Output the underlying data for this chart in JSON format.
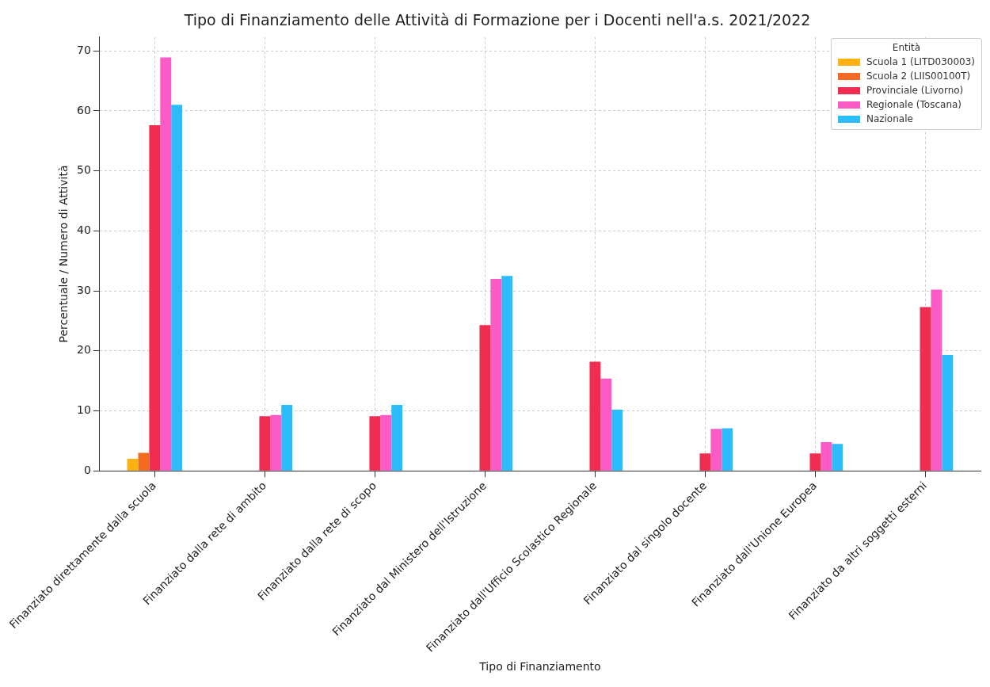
{
  "chart_data": {
    "type": "bar",
    "title": "Tipo di Finanziamento delle Attività di Formazione per i Docenti nell'a.s. 2021/2022",
    "xlabel": "Tipo di Finanziamento",
    "ylabel": "Percentuale / Numero di Attività",
    "legend_title": "Entità",
    "categories": [
      "Finanziato direttamente dalla scuola",
      "Finanziato dalla rete di ambito",
      "Finanziato dalla rete di scopo",
      "Finanziato dal Ministero dell'Istruzione",
      "Finanziato dall'Ufficio Scolastico Regionale",
      "Finanziato dal singolo docente",
      "Finanziato dall'Unione Europea",
      "Finanziato da altri soggetti esterni"
    ],
    "series": [
      {
        "name": "Scuola 1 (LITD030003)",
        "color": "#fdb10f",
        "values": [
          2,
          null,
          null,
          null,
          null,
          null,
          null,
          null
        ]
      },
      {
        "name": "Scuola 2 (LIIS00100T)",
        "color": "#f26b21",
        "values": [
          3,
          null,
          null,
          null,
          null,
          null,
          null,
          null
        ]
      },
      {
        "name": "Provinciale (Livorno)",
        "color": "#ef2d50",
        "values": [
          57.6,
          9.1,
          9.1,
          24.3,
          18.2,
          2.9,
          2.9,
          27.3
        ]
      },
      {
        "name": "Regionale (Toscana)",
        "color": "#fb5bc5",
        "values": [
          68.9,
          9.3,
          9.3,
          32,
          15.4,
          7,
          4.8,
          30.2
        ]
      },
      {
        "name": "Nazionale",
        "color": "#2bbcfb",
        "values": [
          61,
          11,
          11,
          32.5,
          10.2,
          7.1,
          4.5,
          19.3
        ]
      }
    ],
    "ylim": [
      0,
      72.3
    ],
    "yticks": [
      0,
      10,
      20,
      30,
      40,
      50,
      60,
      70
    ],
    "grid": true,
    "legend": "top right"
  }
}
